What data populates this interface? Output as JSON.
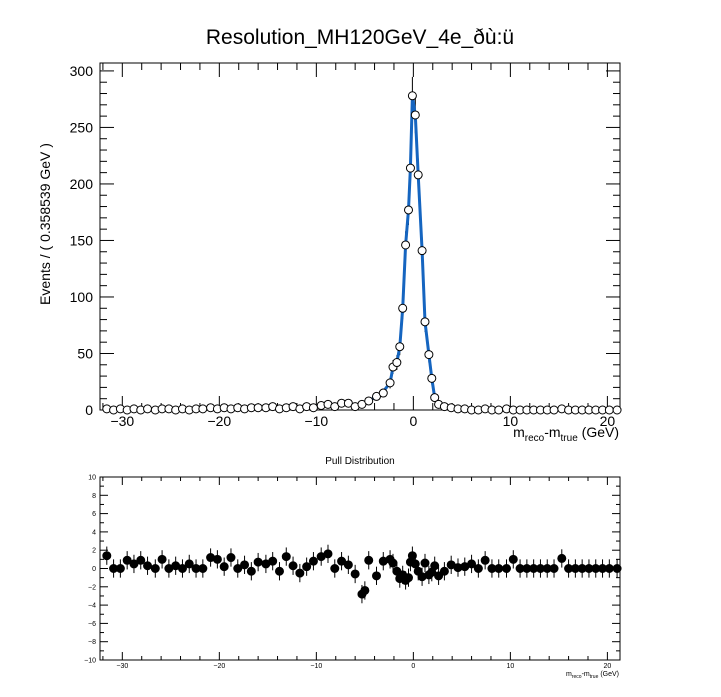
{
  "title": "Resolution_MH120GeV_4e_ðù:ü",
  "chart_data": [
    {
      "type": "scatter",
      "role": "main-fit",
      "ylabel": "Events / ( 0.358539 GeV )",
      "xlabel_main": "m",
      "xlabel_sub1": "reco",
      "xlabel_mid": "-m",
      "xlabel_sub2": "true",
      "xlabel_unit": " (GeV)",
      "xlim": [
        -32.3,
        21.3
      ],
      "ylim": [
        0,
        307
      ],
      "xticks": [
        -30,
        -20,
        -10,
        0,
        10,
        20
      ],
      "yticks": [
        0,
        50,
        100,
        150,
        200,
        250,
        300
      ],
      "grid": false,
      "fit_color": "#1565c0",
      "points": [
        [
          -31.6,
          1
        ],
        [
          -30.9,
          0
        ],
        [
          -30.2,
          1
        ],
        [
          -29.5,
          0
        ],
        [
          -28.8,
          1
        ],
        [
          -28.1,
          0
        ],
        [
          -27.4,
          1
        ],
        [
          -26.6,
          0
        ],
        [
          -25.9,
          1
        ],
        [
          -25.2,
          1
        ],
        [
          -24.5,
          0
        ],
        [
          -23.8,
          1
        ],
        [
          -23.1,
          0
        ],
        [
          -22.4,
          1
        ],
        [
          -21.7,
          1
        ],
        [
          -20.9,
          2
        ],
        [
          -20.2,
          1
        ],
        [
          -19.5,
          2
        ],
        [
          -18.8,
          1
        ],
        [
          -18.1,
          2
        ],
        [
          -17.4,
          1
        ],
        [
          -16.7,
          2
        ],
        [
          -16.0,
          2
        ],
        [
          -15.2,
          2
        ],
        [
          -14.5,
          3
        ],
        [
          -13.8,
          1
        ],
        [
          -13.1,
          2
        ],
        [
          -12.4,
          3
        ],
        [
          -11.7,
          1
        ],
        [
          -11.0,
          3
        ],
        [
          -10.3,
          2
        ],
        [
          -9.5,
          4
        ],
        [
          -8.8,
          5
        ],
        [
          -8.1,
          3
        ],
        [
          -7.4,
          6
        ],
        [
          -6.7,
          6
        ],
        [
          -6.0,
          3
        ],
        [
          -5.3,
          5
        ],
        [
          -4.6,
          8
        ],
        [
          -3.8,
          12
        ],
        [
          -3.1,
          15
        ],
        [
          -2.4,
          24
        ],
        [
          -2.1,
          38
        ],
        [
          -1.7,
          42
        ],
        [
          -1.4,
          56
        ],
        [
          -1.1,
          90
        ],
        [
          -0.8,
          146
        ],
        [
          -0.5,
          177
        ],
        [
          -0.3,
          214
        ],
        [
          -0.1,
          278
        ],
        [
          0.2,
          261
        ],
        [
          0.5,
          208
        ],
        [
          0.9,
          141
        ],
        [
          1.2,
          78
        ],
        [
          1.6,
          49
        ],
        [
          1.9,
          28
        ],
        [
          2.2,
          11
        ],
        [
          2.6,
          5
        ],
        [
          3.2,
          3
        ],
        [
          3.9,
          2
        ],
        [
          4.6,
          1
        ],
        [
          5.3,
          1
        ],
        [
          6.0,
          0
        ],
        [
          6.7,
          0
        ],
        [
          7.4,
          1
        ],
        [
          8.1,
          0
        ],
        [
          8.8,
          0
        ],
        [
          9.6,
          1
        ],
        [
          10.3,
          0
        ],
        [
          11.0,
          0
        ],
        [
          11.7,
          0
        ],
        [
          12.4,
          0
        ],
        [
          13.1,
          0
        ],
        [
          13.8,
          0
        ],
        [
          14.5,
          0
        ],
        [
          15.3,
          1
        ],
        [
          16.0,
          0
        ],
        [
          16.7,
          0
        ],
        [
          17.4,
          0
        ],
        [
          18.1,
          0
        ],
        [
          18.8,
          0
        ],
        [
          19.5,
          0
        ],
        [
          20.2,
          0
        ],
        [
          21.0,
          0
        ]
      ]
    },
    {
      "type": "scatter",
      "role": "pull",
      "title": "Pull Distribution",
      "xlabel_main": "m",
      "xlabel_sub1": "reco",
      "xlabel_mid": "-m",
      "xlabel_sub2": "true",
      "xlabel_unit": " (GeV)",
      "xlim": [
        -32.3,
        21.3
      ],
      "ylim": [
        -10,
        10
      ],
      "xticks": [
        -30,
        -20,
        -10,
        0,
        10,
        20
      ],
      "yticks": [
        -10,
        -8,
        -6,
        -4,
        -2,
        0,
        2,
        4,
        6,
        8,
        10
      ],
      "points": [
        [
          -31.6,
          1.4
        ],
        [
          -30.9,
          0
        ],
        [
          -30.2,
          0
        ],
        [
          -29.5,
          0.9
        ],
        [
          -28.8,
          0.5
        ],
        [
          -28.1,
          0.9
        ],
        [
          -27.4,
          0.3
        ],
        [
          -26.6,
          0
        ],
        [
          -25.9,
          1.0
        ],
        [
          -25.2,
          0
        ],
        [
          -24.5,
          0.3
        ],
        [
          -23.8,
          0
        ],
        [
          -23.1,
          0.5
        ],
        [
          -22.4,
          0
        ],
        [
          -21.7,
          0
        ],
        [
          -20.9,
          1.2
        ],
        [
          -20.2,
          1.0
        ],
        [
          -19.5,
          0.2
        ],
        [
          -18.8,
          1.2
        ],
        [
          -18.1,
          0
        ],
        [
          -17.4,
          0.4
        ],
        [
          -16.7,
          -0.3
        ],
        [
          -16.0,
          0.7
        ],
        [
          -15.2,
          0.5
        ],
        [
          -14.5,
          0.8
        ],
        [
          -13.8,
          -0.3
        ],
        [
          -13.1,
          1.3
        ],
        [
          -12.4,
          0.3
        ],
        [
          -11.7,
          -0.5
        ],
        [
          -11.0,
          0.2
        ],
        [
          -10.3,
          0.8
        ],
        [
          -9.5,
          1.3
        ],
        [
          -8.8,
          1.6
        ],
        [
          -8.1,
          0
        ],
        [
          -7.4,
          0.8
        ],
        [
          -6.7,
          0.4
        ],
        [
          -6.0,
          -0.6
        ],
        [
          -5.3,
          -2.8
        ],
        [
          -5.0,
          -2.4
        ],
        [
          -4.6,
          0.9
        ],
        [
          -3.8,
          -0.8
        ],
        [
          -3.1,
          0.8
        ],
        [
          -2.4,
          1.0
        ],
        [
          -2.1,
          0.6
        ],
        [
          -1.7,
          -0.3
        ],
        [
          -1.4,
          -1.1
        ],
        [
          -1.1,
          -0.7
        ],
        [
          -0.8,
          -1.3
        ],
        [
          -0.5,
          -1.0
        ],
        [
          -0.3,
          0.7
        ],
        [
          -0.1,
          1.4
        ],
        [
          0.2,
          0.5
        ],
        [
          0.5,
          -0.3
        ],
        [
          0.9,
          -0.9
        ],
        [
          1.2,
          0.6
        ],
        [
          1.6,
          -0.7
        ],
        [
          1.9,
          -0.4
        ],
        [
          2.2,
          0.3
        ],
        [
          2.6,
          -0.8
        ],
        [
          3.2,
          -0.3
        ],
        [
          3.9,
          0.4
        ],
        [
          4.6,
          0.1
        ],
        [
          5.3,
          0.2
        ],
        [
          6.0,
          0.5
        ],
        [
          6.7,
          0
        ],
        [
          7.4,
          0.9
        ],
        [
          8.1,
          0
        ],
        [
          8.8,
          0
        ],
        [
          9.6,
          0
        ],
        [
          10.3,
          1.0
        ],
        [
          11.0,
          0
        ],
        [
          11.7,
          0
        ],
        [
          12.4,
          0
        ],
        [
          13.1,
          0
        ],
        [
          13.8,
          0
        ],
        [
          14.5,
          0
        ],
        [
          15.3,
          1.1
        ],
        [
          16.0,
          0
        ],
        [
          16.7,
          0
        ],
        [
          17.4,
          0
        ],
        [
          18.1,
          0
        ],
        [
          18.8,
          0
        ],
        [
          19.5,
          0
        ],
        [
          20.2,
          0
        ],
        [
          21.0,
          0
        ]
      ]
    }
  ]
}
